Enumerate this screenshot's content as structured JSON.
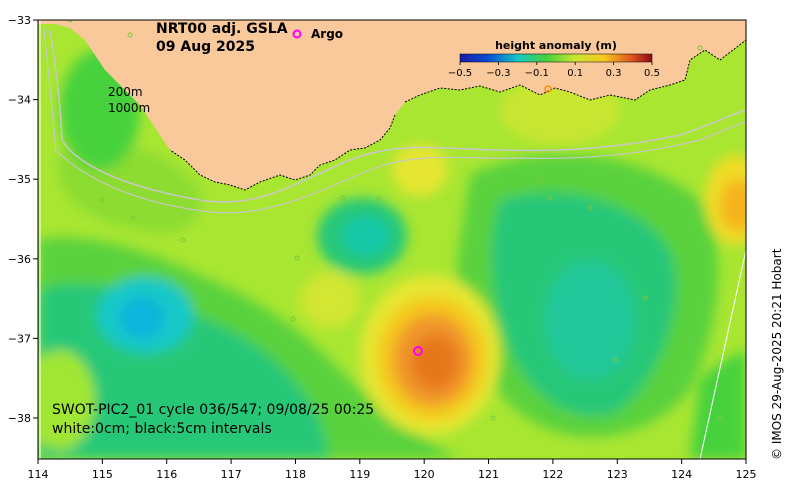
{
  "title": {
    "line1": "NRT00 adj. GSLA",
    "line2": "09 Aug 2025"
  },
  "argo_label": "Argo",
  "legend": {
    "title": "height anomaly (m)",
    "ticks": [
      "−0.5",
      "−0.3",
      "−0.1",
      "0.1",
      "0.3",
      "0.5"
    ],
    "colors": [
      "#1a1aa6",
      "#0a4fd6",
      "#0aa0e6",
      "#14c8c8",
      "#1ec878",
      "#46d23c",
      "#a0e632",
      "#e6e632",
      "#f5c81e",
      "#f0962a",
      "#dc501e",
      "#b4141e"
    ]
  },
  "isobaths": {
    "label1": "200m",
    "label2": "1000m"
  },
  "info": {
    "line1": "SWOT-PIC2_01 cycle 036/547; 09/08/25 00:25",
    "line2": "white:0cm; black:5cm intervals"
  },
  "copyright": "© IMOS 29-Aug-2025 20:21 Hobart",
  "axes": {
    "x_ticks": [
      "114",
      "115",
      "116",
      "117",
      "118",
      "119",
      "120",
      "121",
      "122",
      "123",
      "124",
      "125"
    ],
    "y_ticks": [
      "−33",
      "−34",
      "−35",
      "−36",
      "−37",
      "−38"
    ]
  },
  "colors": {
    "land": "#f9c89b",
    "argo": "#ff00ff"
  }
}
